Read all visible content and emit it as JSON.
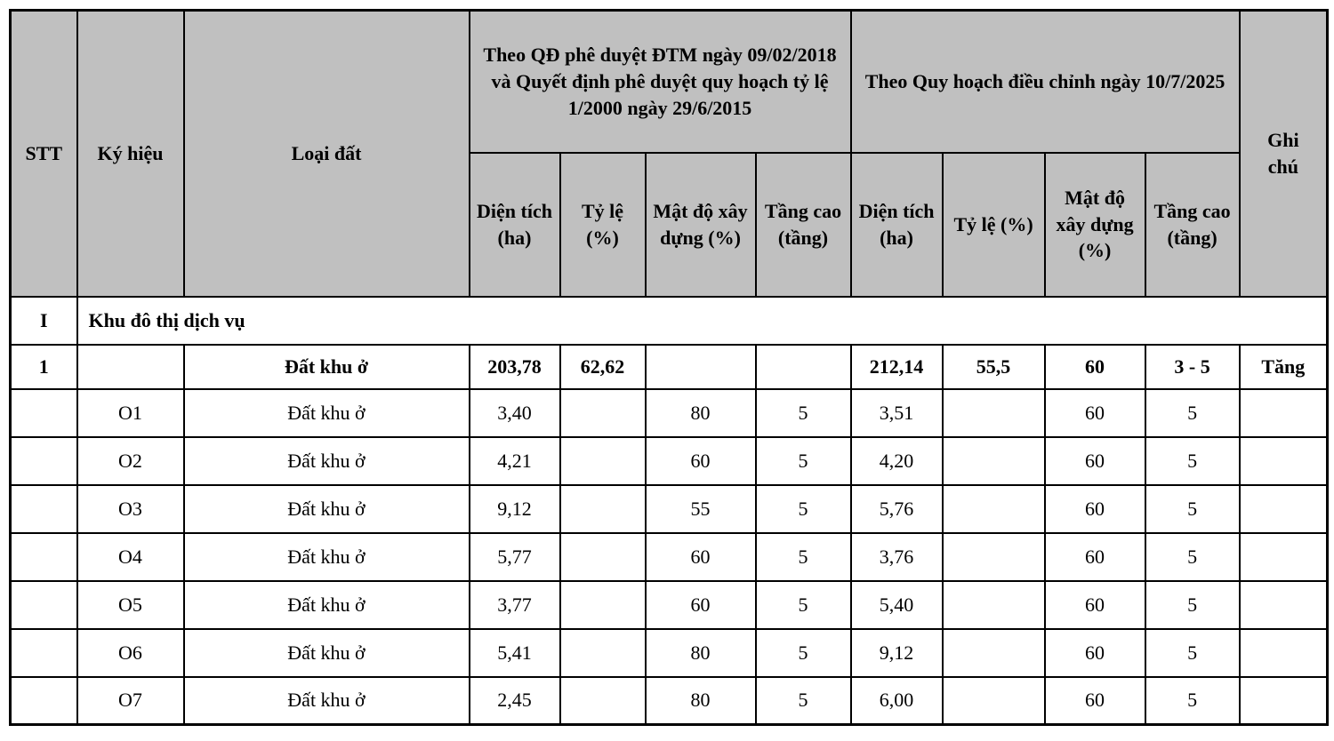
{
  "colors": {
    "header_bg": "#c0c0c0",
    "border": "#000000",
    "body_bg": "#ffffff"
  },
  "table": {
    "header": {
      "stt": "STT",
      "ky_hieu": "Ký hiệu",
      "loai_dat": "Loại đất",
      "group_left": "Theo QĐ phê duyệt ĐTM ngày 09/02/2018 và Quyết định phê duyệt quy hoạch tỷ lệ 1/2000 ngày 29/6/2015",
      "group_right": "Theo Quy hoạch điều chỉnh ngày 10/7/2025",
      "ghi_chu": "Ghi chú",
      "sub_left": {
        "dien_tich": "Diện tích (ha)",
        "ty_le": "Tỷ lệ (%)",
        "mat_do": "Mật độ xây dựng (%)",
        "tang_cao": "Tầng cao (tầng)"
      },
      "sub_right": {
        "dien_tich": "Diện tích (ha)",
        "ty_le": "Tỷ lệ (%)",
        "mat_do": "Mật độ xây dựng (%)",
        "tang_cao": "Tầng cao (tầng)"
      }
    },
    "section_row": {
      "stt": "I",
      "label": "Khu đô thị dịch vụ"
    },
    "rows": [
      {
        "type": "summary",
        "cells": [
          "1",
          "",
          "Đất khu ở",
          "203,78",
          "62,62",
          "",
          "",
          "212,14",
          "55,5",
          "60",
          "3 - 5",
          "Tăng"
        ]
      },
      {
        "type": "detail",
        "cells": [
          "",
          "O1",
          "Đất khu ở",
          "3,40",
          "",
          "80",
          "5",
          "3,51",
          "",
          "60",
          "5",
          ""
        ]
      },
      {
        "type": "detail",
        "cells": [
          "",
          "O2",
          "Đất khu ở",
          "4,21",
          "",
          "60",
          "5",
          "4,20",
          "",
          "60",
          "5",
          ""
        ]
      },
      {
        "type": "detail",
        "cells": [
          "",
          "O3",
          "Đất khu ở",
          "9,12",
          "",
          "55",
          "5",
          "5,76",
          "",
          "60",
          "5",
          ""
        ]
      },
      {
        "type": "detail",
        "cells": [
          "",
          "O4",
          "Đất khu ở",
          "5,77",
          "",
          "60",
          "5",
          "3,76",
          "",
          "60",
          "5",
          ""
        ]
      },
      {
        "type": "detail",
        "cells": [
          "",
          "O5",
          "Đất khu ở",
          "3,77",
          "",
          "60",
          "5",
          "5,40",
          "",
          "60",
          "5",
          ""
        ]
      },
      {
        "type": "detail",
        "cells": [
          "",
          "O6",
          "Đất khu ở",
          "5,41",
          "",
          "80",
          "5",
          "9,12",
          "",
          "60",
          "5",
          ""
        ]
      },
      {
        "type": "detail",
        "cells": [
          "",
          "O7",
          "Đất khu ở",
          "2,45",
          "",
          "80",
          "5",
          "6,00",
          "",
          "60",
          "5",
          ""
        ]
      }
    ]
  }
}
